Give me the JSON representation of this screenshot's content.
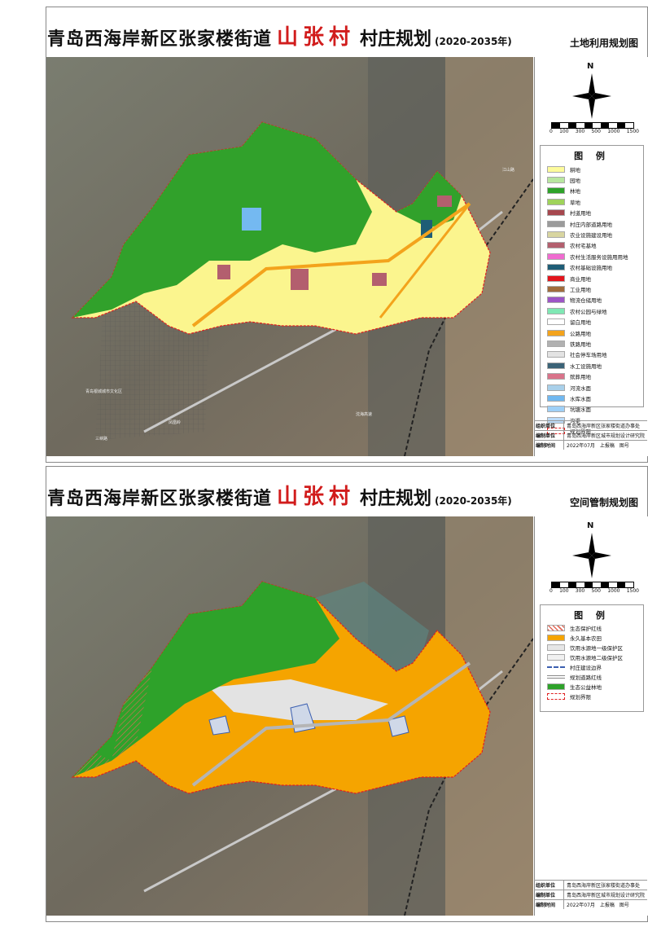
{
  "header": {
    "title_pre": "青岛西海岸新区张家楼街道",
    "title_village": "山张村",
    "title_post": "村庄规划",
    "title_years": "(2020-2035年)"
  },
  "north_label": "N",
  "scale": {
    "labels": [
      "0",
      "100",
      "300",
      "500",
      "1000",
      "1500"
    ]
  },
  "map_labels": [
    "青岛银城城市文化区",
    "三峡路",
    "凤凰岭",
    "江山路",
    "潍日高速",
    "沈海高速",
    "S7601",
    "济青高铁"
  ],
  "sheets": [
    {
      "map_title": "土地利用规划图",
      "legend_title": "图 例",
      "legend": [
        {
          "label": "耕地",
          "color": "#fdfb9b"
        },
        {
          "label": "园地",
          "color": "#b8e6a0"
        },
        {
          "label": "林地",
          "color": "#2ea22a"
        },
        {
          "label": "草地",
          "color": "#9fd35a"
        },
        {
          "label": "村道用地",
          "color": "#a6474e"
        },
        {
          "label": "村庄内部道路用地",
          "color": "#9b9b9b"
        },
        {
          "label": "农业设施建设用地",
          "color": "#d8d5a0"
        },
        {
          "label": "农村宅基地",
          "color": "#b35f6e"
        },
        {
          "label": "农村生活服务设施用用地",
          "color": "#f06bd0"
        },
        {
          "label": "农村基础设施用地",
          "color": "#1f5d76"
        },
        {
          "label": "商业用地",
          "color": "#e3141c"
        },
        {
          "label": "工业用地",
          "color": "#a06c3c"
        },
        {
          "label": "物流仓储用地",
          "color": "#9d55c6"
        },
        {
          "label": "农村公园与绿地",
          "color": "#7fe8b4"
        },
        {
          "label": "留白用地",
          "color": "#ffffff"
        },
        {
          "label": "公路用地",
          "color": "#f3a31c"
        },
        {
          "label": "铁路用地",
          "color": "#b1b1b1"
        },
        {
          "label": "社会停车场用地",
          "color": "#e3e3e3"
        },
        {
          "label": "水工设施用地",
          "color": "#3b6377"
        },
        {
          "label": "殡葬用地",
          "color": "#d9738a"
        },
        {
          "label": "河流水面",
          "color": "#a9d0ea"
        },
        {
          "label": "水库水面",
          "color": "#71b8f0"
        },
        {
          "label": "坑塘水面",
          "color": "#9fd0f7"
        },
        {
          "label": "沟渠",
          "color": "#bcdcf9"
        },
        {
          "label": "规划界限",
          "color": "#ffffff"
        }
      ]
    },
    {
      "map_title": "空间管制规划图",
      "legend_title": "图 例",
      "legend": [
        {
          "label": "生态保护红线",
          "color": "#f3c4b8"
        },
        {
          "label": "永久基本农田",
          "color": "#f5a400"
        },
        {
          "label": "饮用水源地一级保护区",
          "color": "#e6e6e6"
        },
        {
          "label": "饮用水源地二级保护区",
          "color": "#f1f1f1"
        },
        {
          "label": "村庄建设边界",
          "color": "#ffffff"
        },
        {
          "label": "规划道路红线",
          "color": "#ffffff"
        },
        {
          "label": "生态公益林地",
          "color": "#2ea22a"
        },
        {
          "label": "规划界限",
          "color": "#ffffff"
        }
      ]
    }
  ],
  "info": {
    "org_key": "组织单位",
    "org_val": "青岛西海岸新区张家楼街道办事处",
    "comp_key": "编制单位",
    "comp_val": "青岛西海岸新区城市规划设计研究院",
    "time_key": "编制时间",
    "time_val": "2022年07月",
    "stage": "上报稿",
    "fig": "图号"
  }
}
